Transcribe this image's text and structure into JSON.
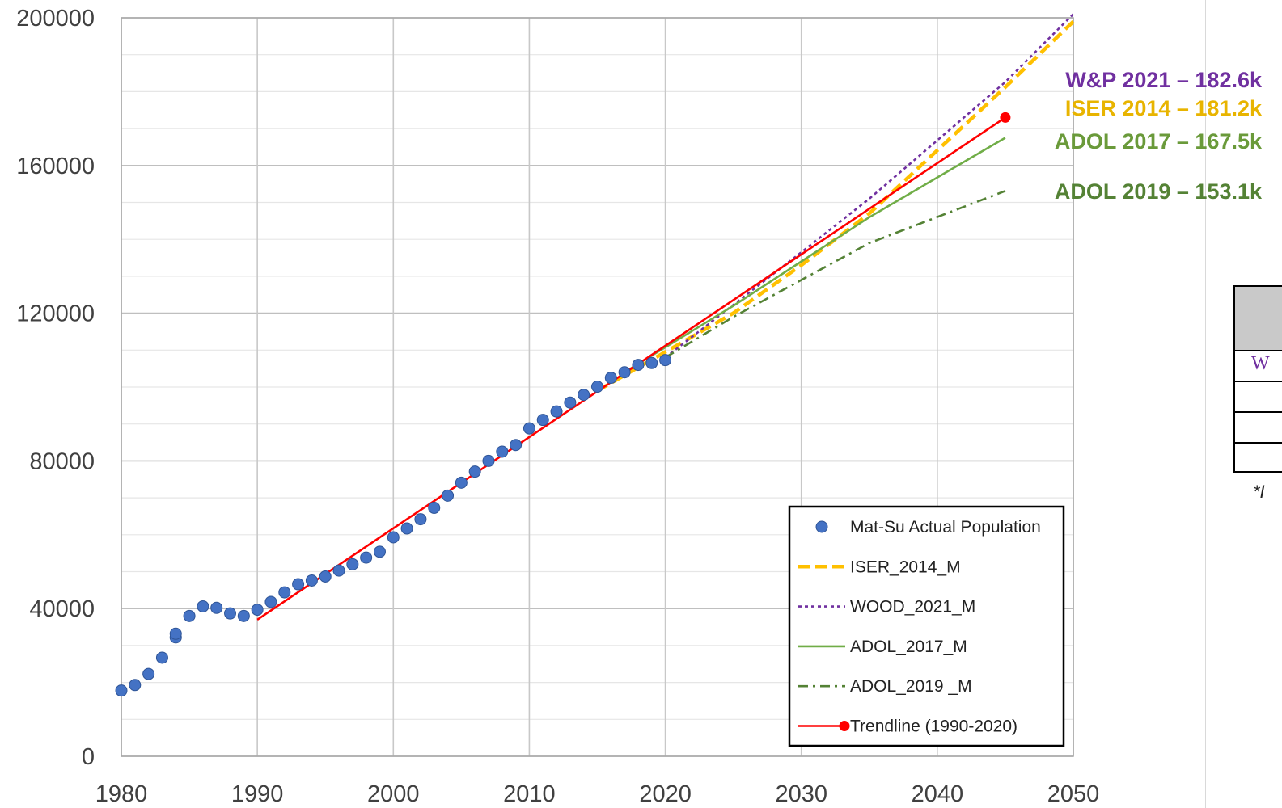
{
  "chart_data": {
    "type": "scatter",
    "xlim": [
      1980,
      2050
    ],
    "ylim": [
      0,
      200000
    ],
    "x_ticks": [
      1980,
      1990,
      2000,
      2010,
      2020,
      2030,
      2040,
      2050
    ],
    "y_ticks": [
      0,
      40000,
      80000,
      120000,
      160000,
      200000
    ],
    "grid": true,
    "legend_position": "bottom-right",
    "actual": {
      "name": "Mat-Su Actual Population",
      "color": "#4472c4",
      "x": [
        1980,
        1981,
        1982,
        1983,
        1984,
        1984,
        1985,
        1986,
        1987,
        1988,
        1989,
        1990,
        1991,
        1992,
        1993,
        1994,
        1995,
        1996,
        1997,
        1998,
        1999,
        2000,
        2001,
        2002,
        2003,
        2004,
        2005,
        2006,
        2007,
        2008,
        2009,
        2010,
        2011,
        2012,
        2013,
        2014,
        2015,
        2016,
        2017,
        2018,
        2019,
        2020
      ],
      "y": [
        17800,
        19300,
        22300,
        26700,
        32200,
        33200,
        38000,
        40600,
        40200,
        38700,
        38000,
        39700,
        41800,
        44400,
        46600,
        47600,
        48700,
        50300,
        52000,
        53800,
        55400,
        59300,
        61700,
        64200,
        67300,
        70600,
        74100,
        77100,
        80000,
        82500,
        84300,
        88800,
        91100,
        93400,
        95800,
        97900,
        100100,
        102500,
        104000,
        106000,
        106500,
        107300
      ]
    },
    "series": [
      {
        "name": "ISER_2014_M",
        "color": "#ffc000",
        "style": "dash",
        "x": [
          2015,
          2025,
          2030,
          2035,
          2045,
          2050
        ],
        "y": [
          99000,
          120000,
          133000,
          147000,
          181200,
          199000
        ]
      },
      {
        "name": "WOOD_2021_M",
        "color": "#7030a0",
        "style": "dot",
        "x": [
          2020,
          2030,
          2035,
          2045,
          2050
        ],
        "y": [
          108000,
          136500,
          151000,
          182600,
          201000
        ]
      },
      {
        "name": "ADOL_2017_M",
        "color": "#70ad47",
        "style": "solid",
        "x": [
          2017,
          2025,
          2030,
          2035,
          2045
        ],
        "y": [
          104000,
          122000,
          134000,
          146000,
          167500
        ]
      },
      {
        "name": "ADOL_2019 _M",
        "color": "#548235",
        "style": "dashdot",
        "x": [
          2020,
          2025,
          2030,
          2035,
          2045
        ],
        "y": [
          108000,
          119000,
          129000,
          139000,
          153100
        ]
      },
      {
        "name": "Trendline (1990-2020)",
        "color": "#ff0000",
        "style": "solid",
        "marker_end": true,
        "x": [
          1990,
          2045
        ],
        "y": [
          37000,
          173000
        ]
      }
    ],
    "annotations": [
      {
        "text": "W&P 2021 – 182.6k",
        "color": "#7030a0"
      },
      {
        "text": "ISER 2014 – 181.2k",
        "color": "#e8b400"
      },
      {
        "text": "ADOL 2017 – 167.5k",
        "color": "#6a9a3a"
      },
      {
        "text": "ADOL 2019 – 153.1k",
        "color": "#548235"
      }
    ]
  },
  "side_table": {
    "first_cell": "W"
  },
  "footnote": "*I"
}
